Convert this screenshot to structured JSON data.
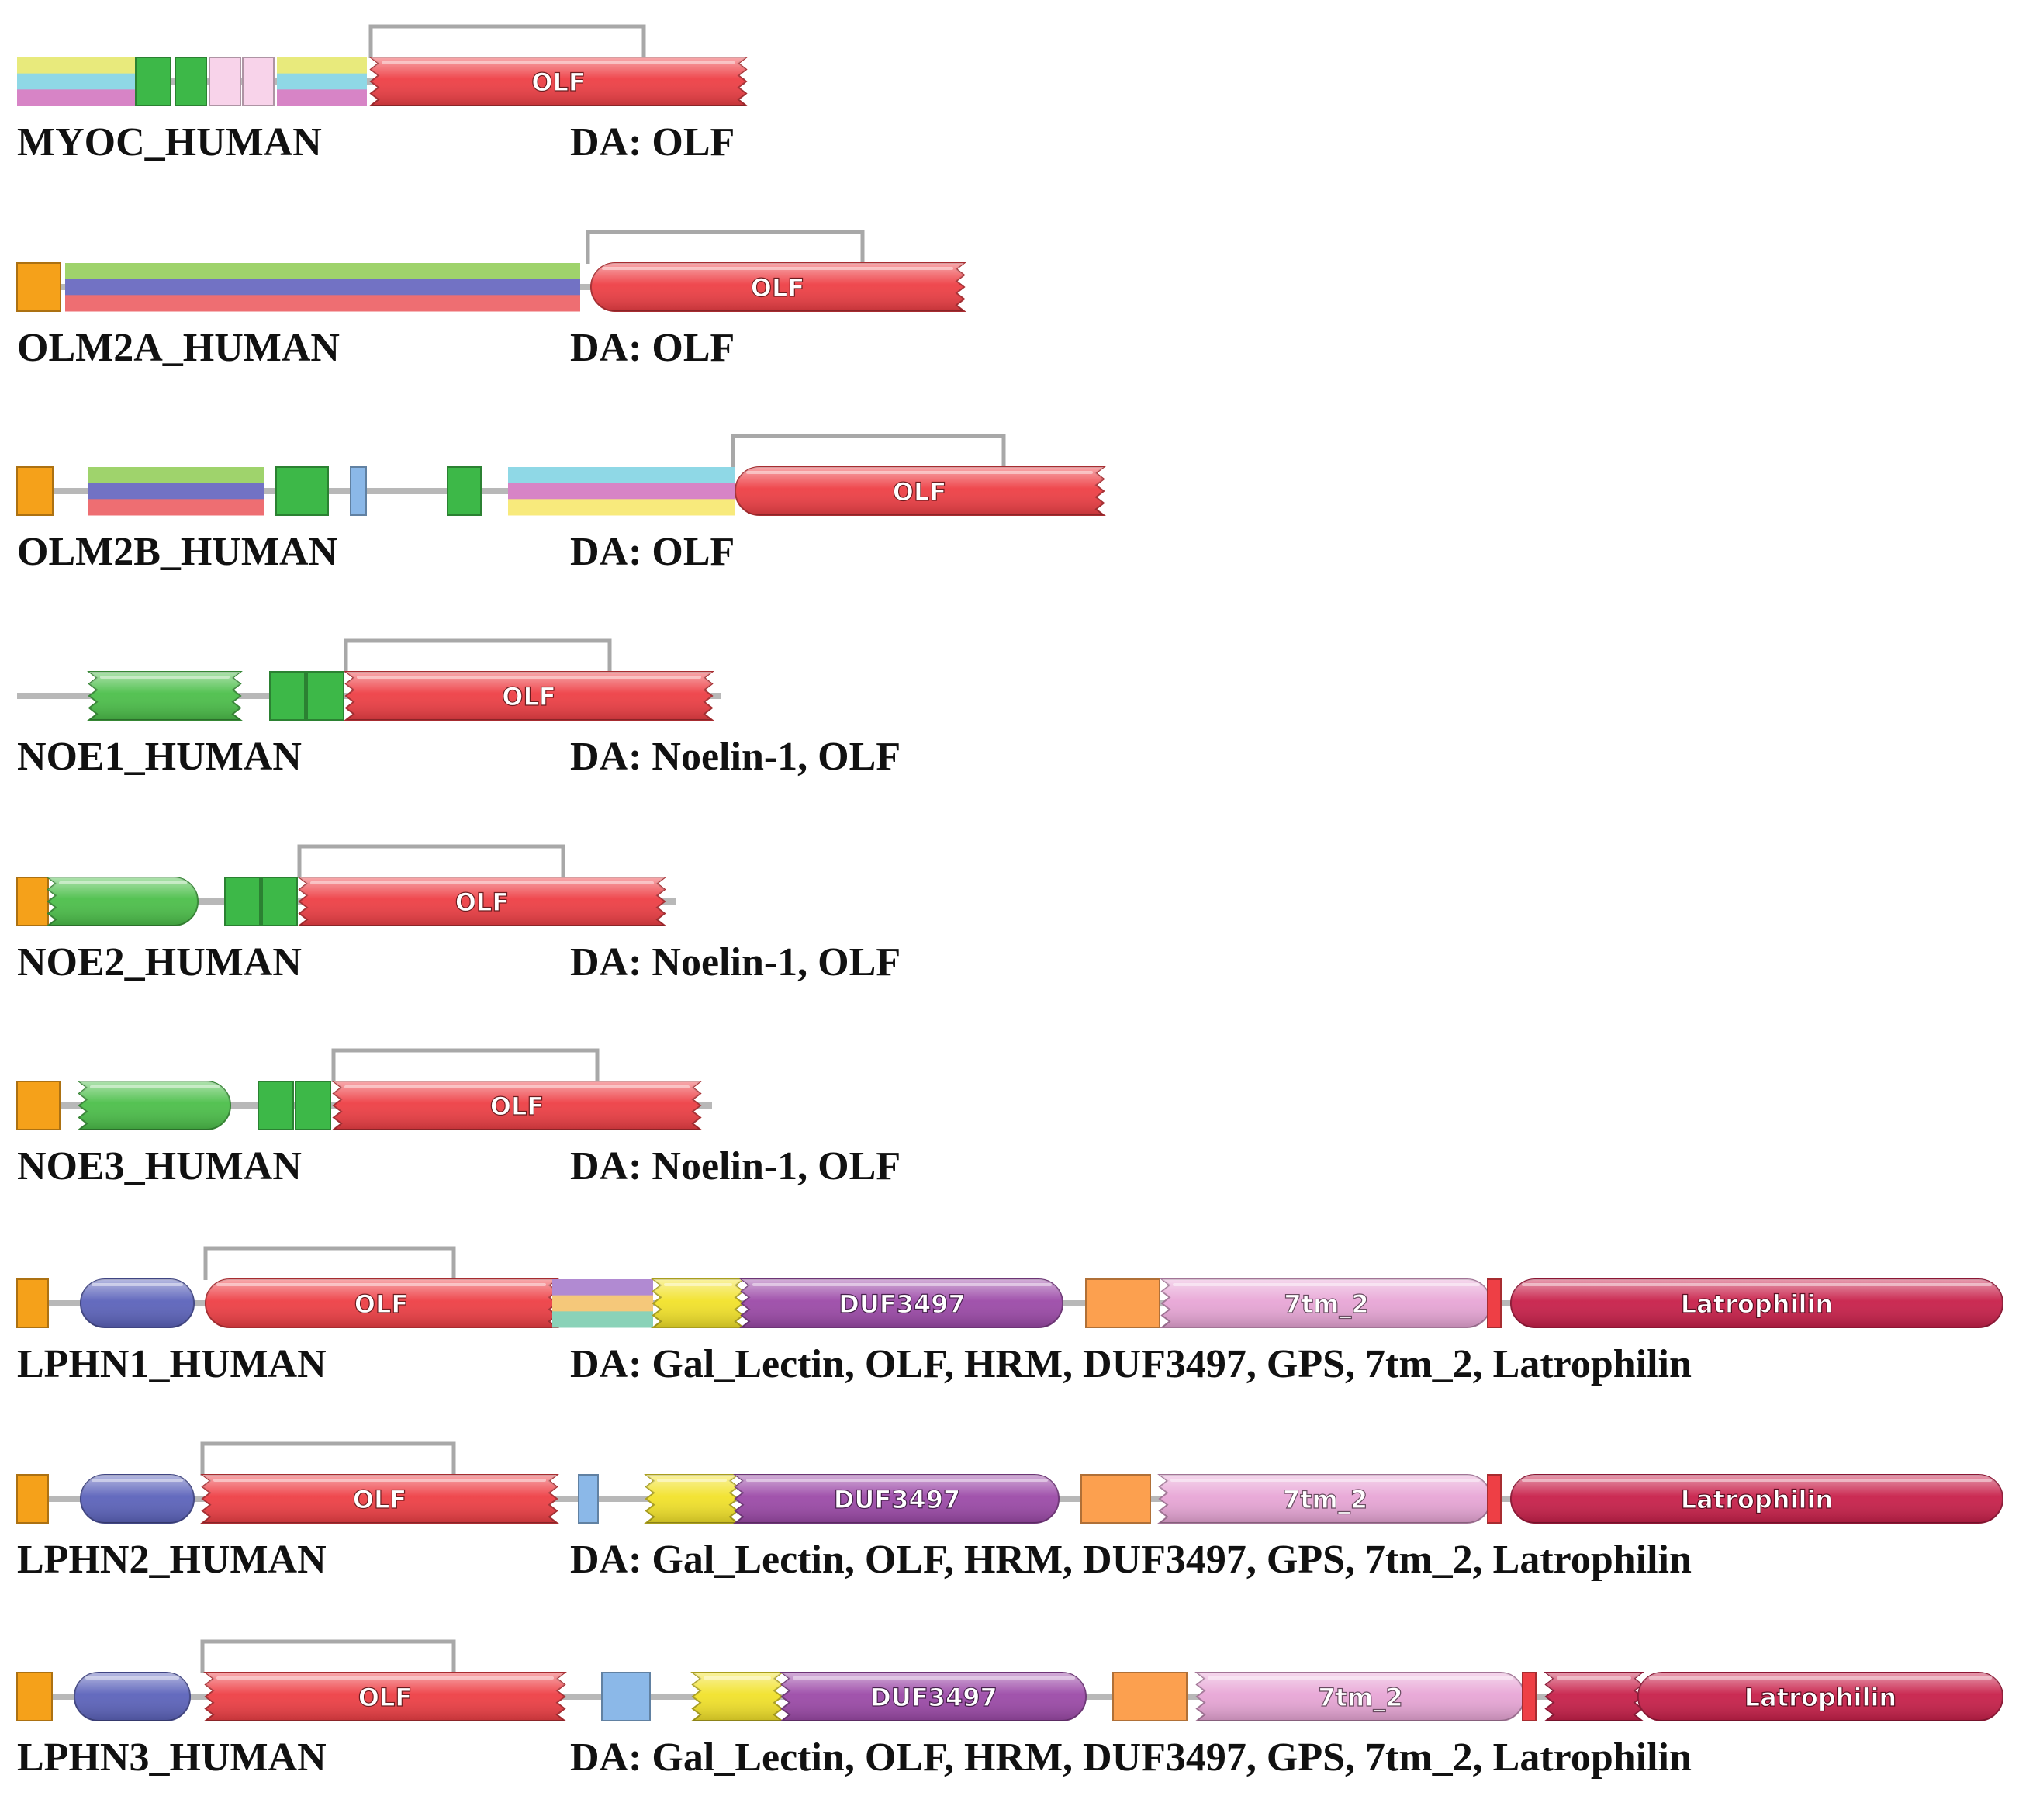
{
  "proteins": [
    {
      "name": "MYOC_HUMAN",
      "da": "DA: OLF",
      "domains": [
        {
          "label": "",
          "type": "stripes",
          "colors": [
            "#e8ea7c",
            "#8fd8e6",
            "#d784c6"
          ]
        },
        {
          "label": "",
          "type": "box",
          "color": "#3db848"
        },
        {
          "label": "",
          "type": "box",
          "color": "#3db848"
        },
        {
          "label": "",
          "type": "box",
          "color": "#f8d3ea"
        },
        {
          "label": "",
          "type": "box",
          "color": "#f8d3ea"
        },
        {
          "label": "",
          "type": "stripes",
          "colors": [
            "#e8ea7c",
            "#8fd8e6",
            "#d784c6"
          ]
        },
        {
          "label": "OLF",
          "type": "zigzag",
          "color": "#ee3f45"
        }
      ]
    },
    {
      "name": "OLM2A_HUMAN",
      "da": "DA: OLF",
      "domains": [
        {
          "label": "",
          "type": "box",
          "color": "#f5a11a"
        },
        {
          "label": "",
          "type": "stripes",
          "colors": [
            "#9fd36c",
            "#7272c4",
            "#ee6e72"
          ]
        },
        {
          "label": "OLF",
          "type": "roundzig",
          "color": "#ee3f45"
        }
      ]
    },
    {
      "name": "OLM2B_HUMAN",
      "da": "DA: OLF",
      "domains": [
        {
          "label": "",
          "type": "box",
          "color": "#f5a11a"
        },
        {
          "label": "",
          "type": "stripes",
          "colors": [
            "#9fd36c",
            "#7272c4",
            "#ee6e72"
          ]
        },
        {
          "label": "",
          "type": "box",
          "color": "#3db848"
        },
        {
          "label": "",
          "type": "box",
          "color": "#8bb8e8"
        },
        {
          "label": "",
          "type": "box",
          "color": "#3db848"
        },
        {
          "label": "",
          "type": "stripes",
          "colors": [
            "#8fd8e6",
            "#d784c6",
            "#f8ea7c"
          ]
        },
        {
          "label": "OLF",
          "type": "roundzig",
          "color": "#ee3f45"
        }
      ]
    },
    {
      "name": "NOE1_HUMAN",
      "da": "DA: Noelin-1, OLF",
      "domains": [
        {
          "label": "",
          "type": "zigzag",
          "color": "#4cbf4a"
        },
        {
          "label": "",
          "type": "box",
          "color": "#3db848"
        },
        {
          "label": "",
          "type": "box",
          "color": "#3db848"
        },
        {
          "label": "OLF",
          "type": "zigzag",
          "color": "#ee3f45"
        }
      ]
    },
    {
      "name": "NOE2_HUMAN",
      "da": "DA: Noelin-1, OLF",
      "domains": [
        {
          "label": "",
          "type": "box",
          "color": "#f5a11a"
        },
        {
          "label": "",
          "type": "zigpill",
          "color": "#4cbf4a"
        },
        {
          "label": "",
          "type": "box",
          "color": "#3db848"
        },
        {
          "label": "",
          "type": "box",
          "color": "#3db848"
        },
        {
          "label": "OLF",
          "type": "zigzag",
          "color": "#ee3f45"
        }
      ]
    },
    {
      "name": "NOE3_HUMAN",
      "da": "DA: Noelin-1, OLF",
      "domains": [
        {
          "label": "",
          "type": "box",
          "color": "#f5a11a"
        },
        {
          "label": "",
          "type": "zigpill",
          "color": "#4cbf4a"
        },
        {
          "label": "",
          "type": "box",
          "color": "#3db848"
        },
        {
          "label": "",
          "type": "box",
          "color": "#3db848"
        },
        {
          "label": "OLF",
          "type": "zigzag",
          "color": "#ee3f45"
        }
      ]
    },
    {
      "name": "LPHN1_HUMAN",
      "da": "DA: Gal_Lectin, OLF, HRM, DUF3497, GPS, 7tm_2, Latrophilin",
      "domains": [
        {
          "label": "",
          "type": "box",
          "color": "#f5a11a"
        },
        {
          "label": "",
          "type": "pill",
          "color": "#5c63bb"
        },
        {
          "label": "OLF",
          "type": "roundzig",
          "color": "#ee3f45"
        },
        {
          "label": "",
          "type": "stripes",
          "colors": [
            "#b18ad2",
            "#f5c87a",
            "#8ad2b8"
          ]
        },
        {
          "label": "",
          "type": "zigzag",
          "color": "#f2e22a"
        },
        {
          "label": "DUF3497",
          "type": "zigpill",
          "color": "#9c4aa8"
        },
        {
          "label": "",
          "type": "box",
          "color": "#fca04f"
        },
        {
          "label": "7tm_2",
          "type": "zigpill",
          "color": "#e8a6d6"
        },
        {
          "label": "",
          "type": "box",
          "color": "#ee3f45"
        },
        {
          "label": "Latrophilin",
          "type": "pill",
          "color": "#c8204a"
        }
      ]
    },
    {
      "name": "LPHN2_HUMAN",
      "da": "DA: Gal_Lectin, OLF, HRM, DUF3497, GPS, 7tm_2, Latrophilin",
      "domains": [
        {
          "label": "",
          "type": "box",
          "color": "#f5a11a"
        },
        {
          "label": "",
          "type": "pill",
          "color": "#5c63bb"
        },
        {
          "label": "OLF",
          "type": "zigzag",
          "color": "#ee3f45"
        },
        {
          "label": "",
          "type": "box",
          "color": "#8bb8e8"
        },
        {
          "label": "",
          "type": "zigzag",
          "color": "#f2e22a"
        },
        {
          "label": "DUF3497",
          "type": "zigpill",
          "color": "#9c4aa8"
        },
        {
          "label": "",
          "type": "box",
          "color": "#fca04f"
        },
        {
          "label": "7tm_2",
          "type": "zigpill",
          "color": "#e8a6d6"
        },
        {
          "label": "",
          "type": "box",
          "color": "#ee3f45"
        },
        {
          "label": "Latrophilin",
          "type": "pill",
          "color": "#c8204a"
        }
      ]
    },
    {
      "name": "LPHN3_HUMAN",
      "da": "DA: Gal_Lectin, OLF, HRM, DUF3497, GPS, 7tm_2, Latrophilin",
      "domains": [
        {
          "label": "",
          "type": "box",
          "color": "#f5a11a"
        },
        {
          "label": "",
          "type": "pill",
          "color": "#5c63bb"
        },
        {
          "label": "OLF",
          "type": "zigzag",
          "color": "#ee3f45"
        },
        {
          "label": "",
          "type": "box",
          "color": "#8bb8e8"
        },
        {
          "label": "",
          "type": "zigzag",
          "color": "#f2e22a"
        },
        {
          "label": "DUF3497",
          "type": "zigpill",
          "color": "#9c4aa8"
        },
        {
          "label": "",
          "type": "box",
          "color": "#fca04f"
        },
        {
          "label": "7tm_2",
          "type": "zigpill",
          "color": "#e8a6d6"
        },
        {
          "label": "",
          "type": "box",
          "color": "#ee3f45"
        },
        {
          "label": "",
          "type": "zigzag",
          "color": "#c8204a"
        },
        {
          "label": "Latrophilin",
          "type": "pill",
          "color": "#c8204a"
        }
      ]
    }
  ]
}
